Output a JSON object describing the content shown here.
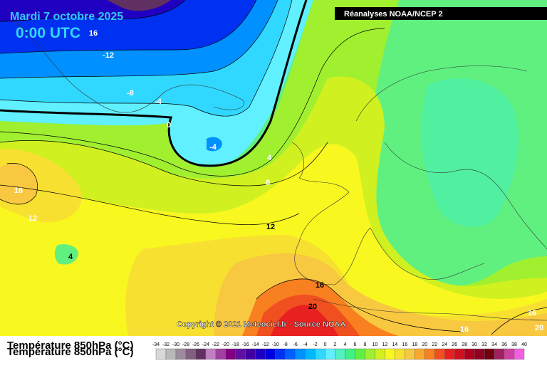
{
  "header": {
    "date": "Mardi 7 octobre 2025",
    "time": "0:00 UTC",
    "source": "Réanalyses NOAA/NCEP 2"
  },
  "copyright": "Copyright © 2021 Meteociel.fr - Source NOAA",
  "contour_labels": [
    16,
    -12,
    -8,
    -4,
    0,
    -4,
    4,
    8,
    12,
    16,
    12,
    4,
    16,
    20,
    16,
    16,
    20
  ],
  "legend": {
    "title": "Température 850hPa (°C)",
    "ticks": [
      -34,
      -32,
      -30,
      -28,
      -26,
      -24,
      -22,
      -20,
      -18,
      -16,
      -14,
      -12,
      -10,
      -8,
      -6,
      -4,
      -2,
      0,
      2,
      4,
      6,
      8,
      10,
      12,
      14,
      16,
      18,
      20,
      22,
      24,
      26,
      28,
      30,
      32,
      34,
      36,
      38,
      40
    ],
    "colors": [
      "#d8d8d8",
      "#b8b8b8",
      "#9c8c9c",
      "#806080",
      "#603060",
      "#c080c0",
      "#a040a0",
      "#800080",
      "#6010a0",
      "#4000a0",
      "#2000c0",
      "#0000e0",
      "#0030f0",
      "#0060ff",
      "#0090ff",
      "#00b8ff",
      "#30d8ff",
      "#60f0ff",
      "#50f0c0",
      "#40f080",
      "#60f040",
      "#a0f030",
      "#d0f020",
      "#f8f820",
      "#f8e030",
      "#f8c840",
      "#f8a830",
      "#f88020",
      "#f05020",
      "#e82020",
      "#d01020",
      "#b00020",
      "#900020",
      "#700010",
      "#a02060",
      "#d040a0",
      "#f060e0"
    ]
  }
}
